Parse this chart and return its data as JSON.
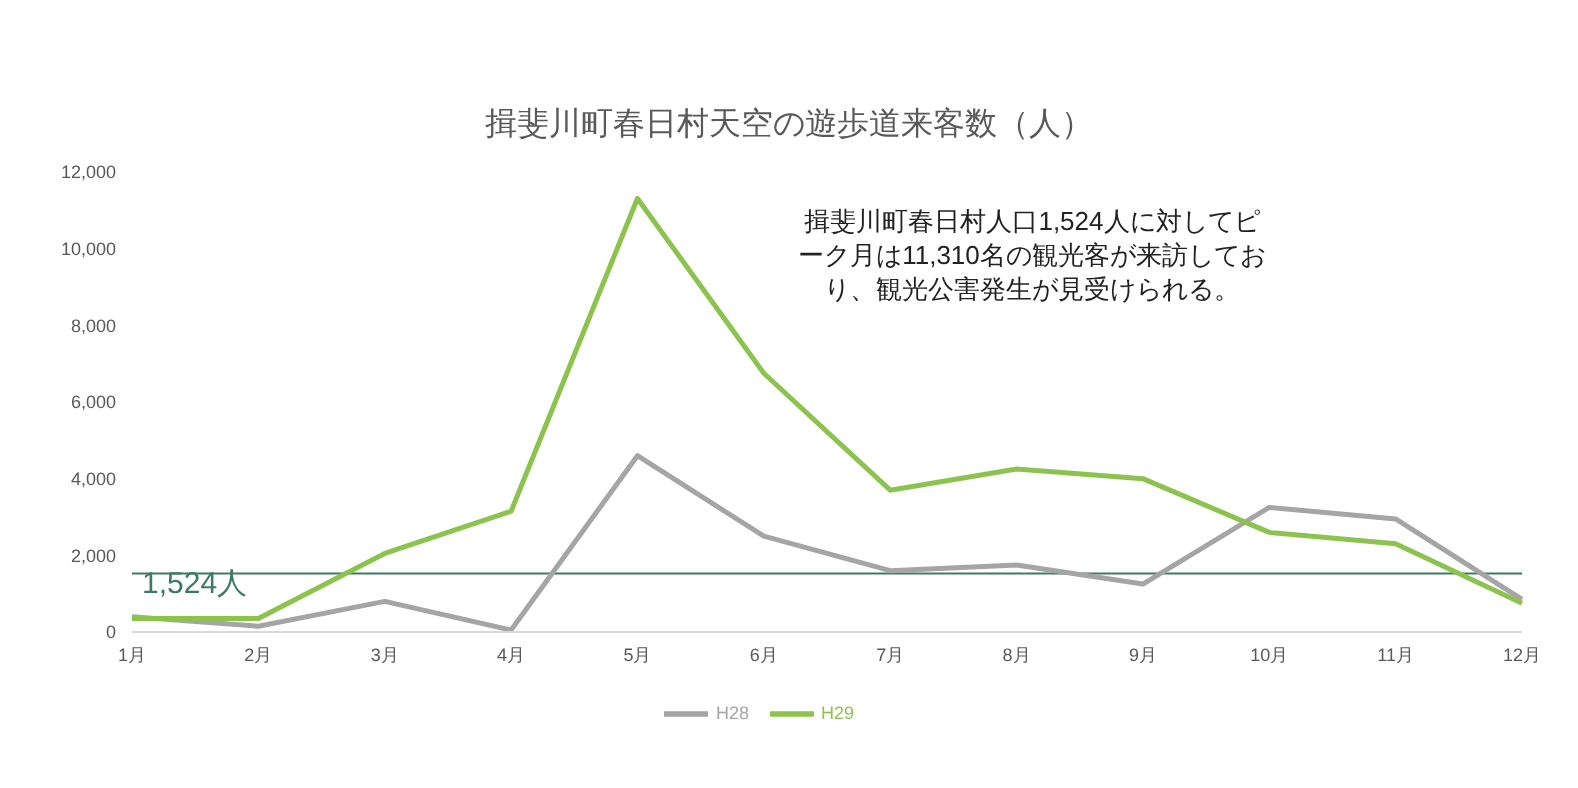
{
  "chart_data": {
    "type": "line",
    "title": "揖斐川町春日村天空の遊歩道来客数（人）",
    "categories": [
      "1月",
      "2月",
      "3月",
      "4月",
      "5月",
      "6月",
      "7月",
      "8月",
      "9月",
      "10月",
      "11月",
      "12月"
    ],
    "series": [
      {
        "name": "H28",
        "color": "#a5a5a5",
        "values": [
          400,
          150,
          800,
          50,
          4600,
          2500,
          1600,
          1750,
          1250,
          3250,
          2950,
          850
        ]
      },
      {
        "name": "H29",
        "color": "#8cc34f",
        "values": [
          350,
          350,
          2050,
          3150,
          11310,
          6750,
          3700,
          4250,
          4000,
          2600,
          2300,
          750
        ]
      }
    ],
    "ylim": [
      0,
      12000
    ],
    "yticks": [
      {
        "value": 0,
        "label": "0"
      },
      {
        "value": 2000,
        "label": "2,000"
      },
      {
        "value": 4000,
        "label": "4,000"
      },
      {
        "value": 6000,
        "label": "6,000"
      },
      {
        "value": 8000,
        "label": "8,000"
      },
      {
        "value": 10000,
        "label": "10,000"
      },
      {
        "value": 12000,
        "label": "12,000"
      }
    ],
    "ref_lines": [
      {
        "axis": "y",
        "value": 1524,
        "label": "1,524人",
        "color": "#3d7a66"
      }
    ],
    "annotations": [
      "揖斐川町春日村人口1,524人に対してピーク月は11,310名の観光客が来訪しており、観光公害発生が見受けられる。"
    ],
    "grid": false,
    "legend": "bottom",
    "marker": "none",
    "line_style": "solid"
  }
}
